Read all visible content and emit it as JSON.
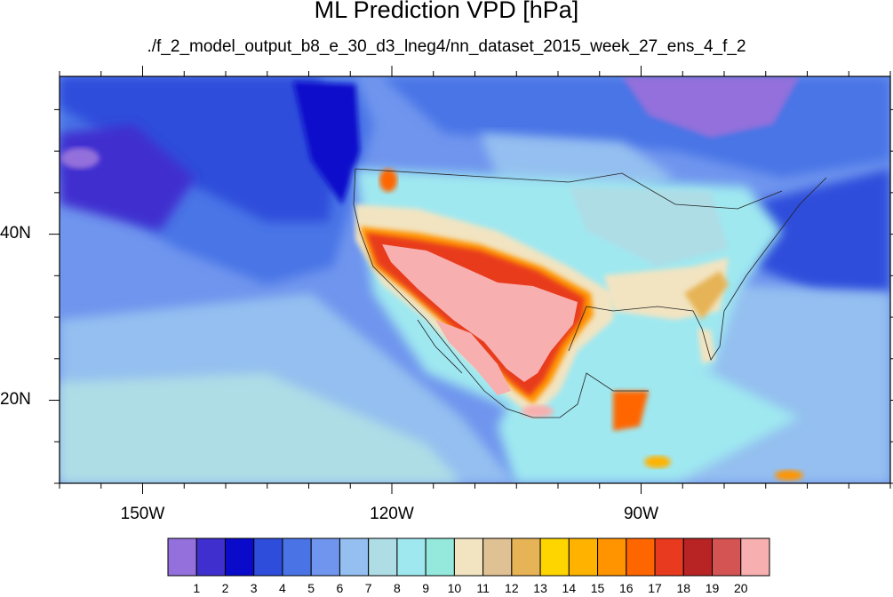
{
  "title": "ML Prediction VPD [hPa]",
  "subtitle": "./f_2_model_output_b8_e_30_d3_lneg4/nn_dataset_2015_week_27_ens_4_f_2",
  "map": {
    "lon_range": [
      -160,
      -60
    ],
    "lat_range": [
      10,
      59
    ],
    "lat_ticks": [
      {
        "value": 40,
        "label": "40N"
      },
      {
        "value": 20,
        "label": "20N"
      }
    ],
    "lon_ticks": [
      {
        "value": -150,
        "label": "150W"
      },
      {
        "value": -120,
        "label": "120W"
      },
      {
        "value": -90,
        "label": "90W"
      }
    ],
    "field": "VPD",
    "units": "hPa"
  },
  "colorbar": {
    "colors": [
      "#9370db",
      "#3f2fcf",
      "#0a0acb",
      "#2e4ddb",
      "#4a74e6",
      "#6f95ee",
      "#94bff0",
      "#aedde6",
      "#9fe8f0",
      "#94e9dc",
      "#f2e4c1",
      "#dfc193",
      "#e6b456",
      "#ffd500",
      "#ffb300",
      "#ff9400",
      "#ff6600",
      "#e83a1e",
      "#b82424",
      "#d45454",
      "#f8afaf"
    ],
    "labels": [
      "1",
      "2",
      "3",
      "4",
      "5",
      "6",
      "7",
      "8",
      "9",
      "10",
      "11",
      "12",
      "13",
      "14",
      "15",
      "16",
      "17",
      "18",
      "19",
      "20"
    ]
  }
}
